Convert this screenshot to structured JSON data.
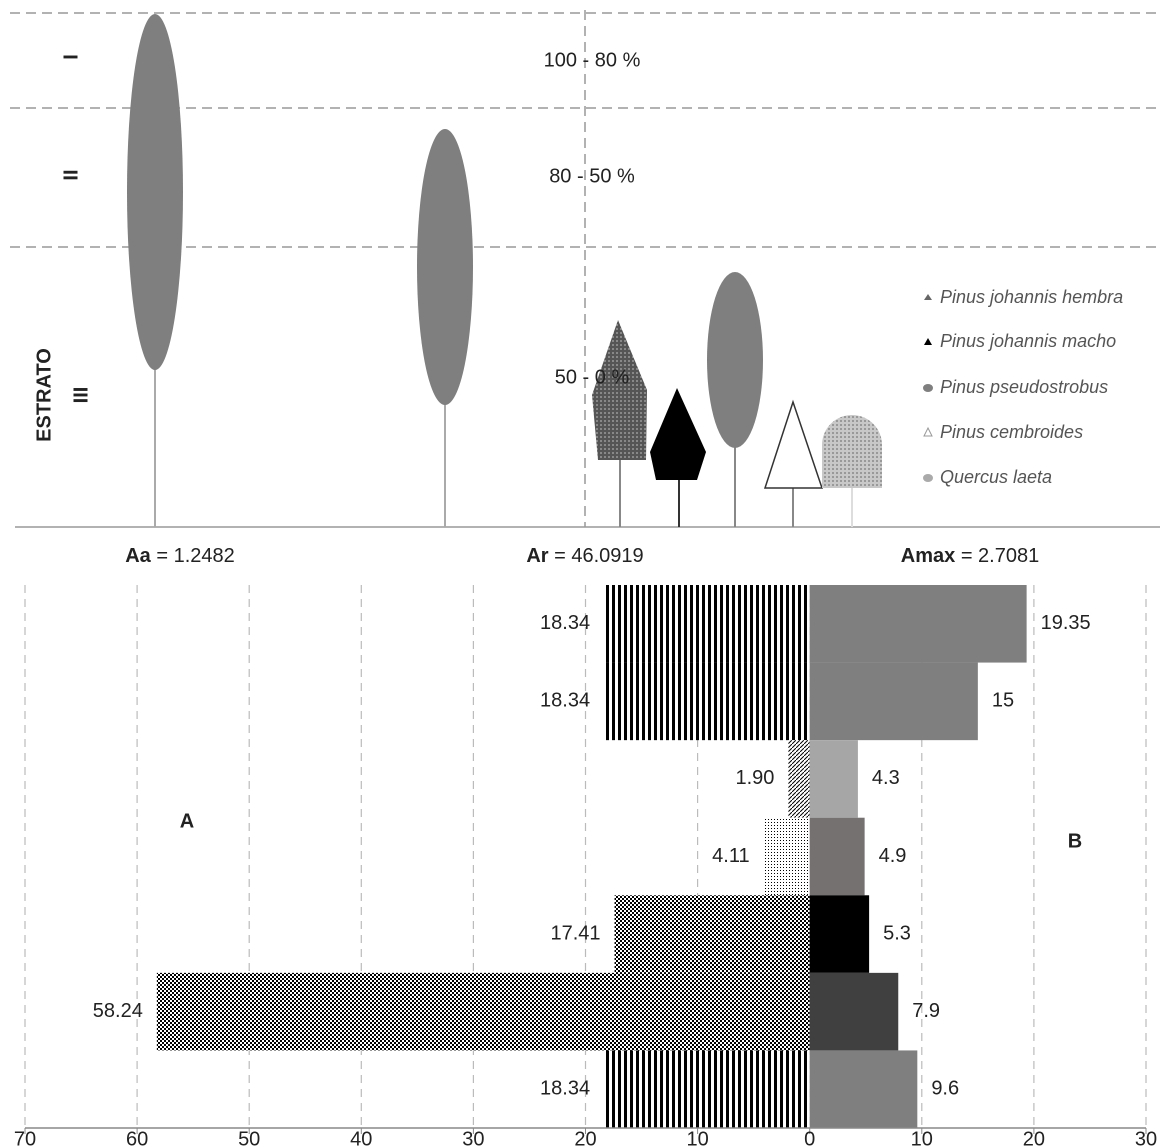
{
  "profile": {
    "strata": [
      "I",
      "II",
      "III"
    ],
    "stratum_title": "ESTRATO",
    "ranges": [
      "100 - 80 %",
      "80 - 50 %",
      "50 - 0 %"
    ],
    "legend": [
      "Pinus johannis hembra",
      "Pinus johannis macho",
      "Pinus pseudostrobus",
      "Pinus cembroides",
      "Quercus laeta"
    ]
  },
  "indices": [
    {
      "name": "Aa",
      "text": "= 1.2482"
    },
    {
      "name": "Ar",
      "text": "= 46.0919"
    },
    {
      "name": "Amax",
      "text": "= 2.7081"
    }
  ],
  "chart_data": {
    "type": "diverging-bar",
    "xlim": [
      -70,
      30
    ],
    "xticks": [
      {
        "value": -70,
        "label": "70"
      },
      {
        "value": -60,
        "label": "60"
      },
      {
        "value": -50,
        "label": "50"
      },
      {
        "value": -40,
        "label": "40"
      },
      {
        "value": -30,
        "label": "30"
      },
      {
        "value": -20,
        "label": "20"
      },
      {
        "value": -10,
        "label": "10"
      },
      0,
      10,
      20,
      30
    ],
    "grid": true,
    "series": [
      {
        "name": "A",
        "patterns": [
          "stripes",
          "stripes",
          "diagonal",
          "dots",
          "checker",
          "checker",
          "stripes"
        ],
        "values": [
          -18.34,
          -18.34,
          -1.9,
          -4.11,
          -17.41,
          -58.24,
          -18.34
        ],
        "value_labels": [
          "18.34",
          "18.34",
          "1.90",
          "4.11",
          "17.41",
          "58.24",
          "18.34"
        ]
      },
      {
        "name": "B",
        "colors": [
          "#7f7f7f",
          "#7f7f7f",
          "#a6a6a6",
          "#767171",
          "#000000",
          "#404040",
          "#7f7f7f"
        ],
        "values": [
          19.35,
          15,
          4.3,
          4.9,
          5.3,
          7.9,
          9.6
        ]
      }
    ]
  }
}
